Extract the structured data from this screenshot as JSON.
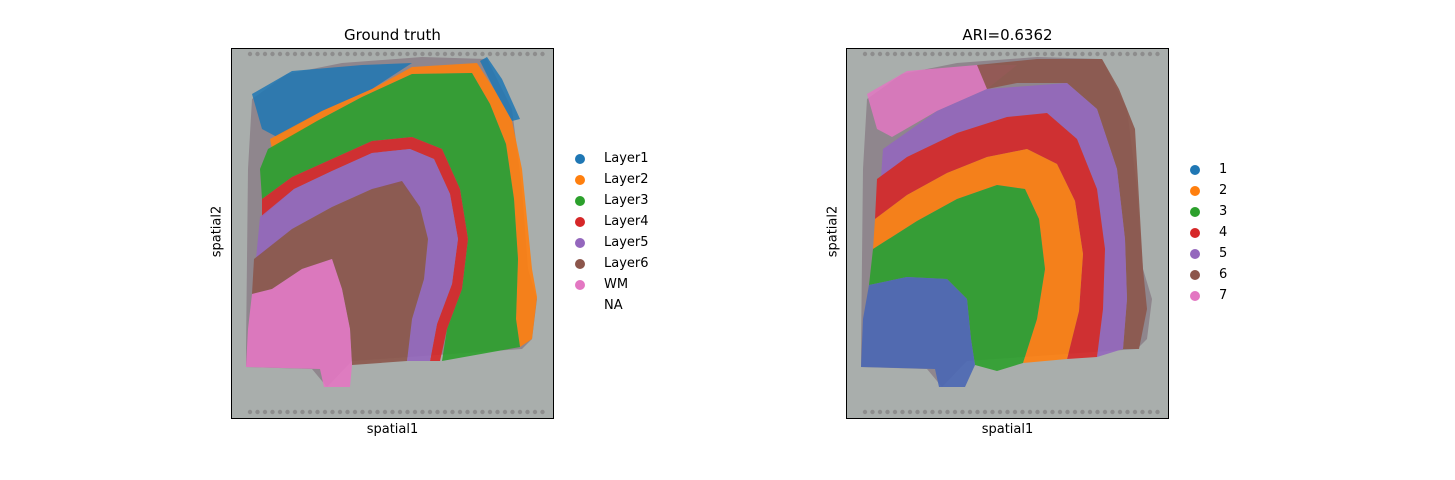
{
  "chart_data": [
    {
      "type": "scatter",
      "title": "Ground truth",
      "xlabel": "spatial1",
      "ylabel": "spatial2",
      "grid": false,
      "legend_placement": "right",
      "legend": [
        {
          "label": "Layer1",
          "color": "#1f77b4"
        },
        {
          "label": "Layer2",
          "color": "#ff7f0e"
        },
        {
          "label": "Layer3",
          "color": "#2ca02c"
        },
        {
          "label": "Layer4",
          "color": "#d62728"
        },
        {
          "label": "Layer5",
          "color": "#9467bd"
        },
        {
          "label": "Layer6",
          "color": "#8c564b"
        },
        {
          "label": "WM",
          "color": "#e377c2"
        },
        {
          "label": "NA",
          "color": ""
        }
      ]
    },
    {
      "type": "scatter",
      "title": "ARI=0.6362",
      "xlabel": "spatial1",
      "ylabel": "spatial2",
      "grid": false,
      "legend_placement": "right",
      "legend": [
        {
          "label": "1",
          "color": "#1f77b4"
        },
        {
          "label": "2",
          "color": "#ff7f0e"
        },
        {
          "label": "3",
          "color": "#2ca02c"
        },
        {
          "label": "4",
          "color": "#d62728"
        },
        {
          "label": "5",
          "color": "#9467bd"
        },
        {
          "label": "6",
          "color": "#8c564b"
        },
        {
          "label": "7",
          "color": "#e377c2"
        }
      ]
    }
  ],
  "background_color": "#a9aeac"
}
